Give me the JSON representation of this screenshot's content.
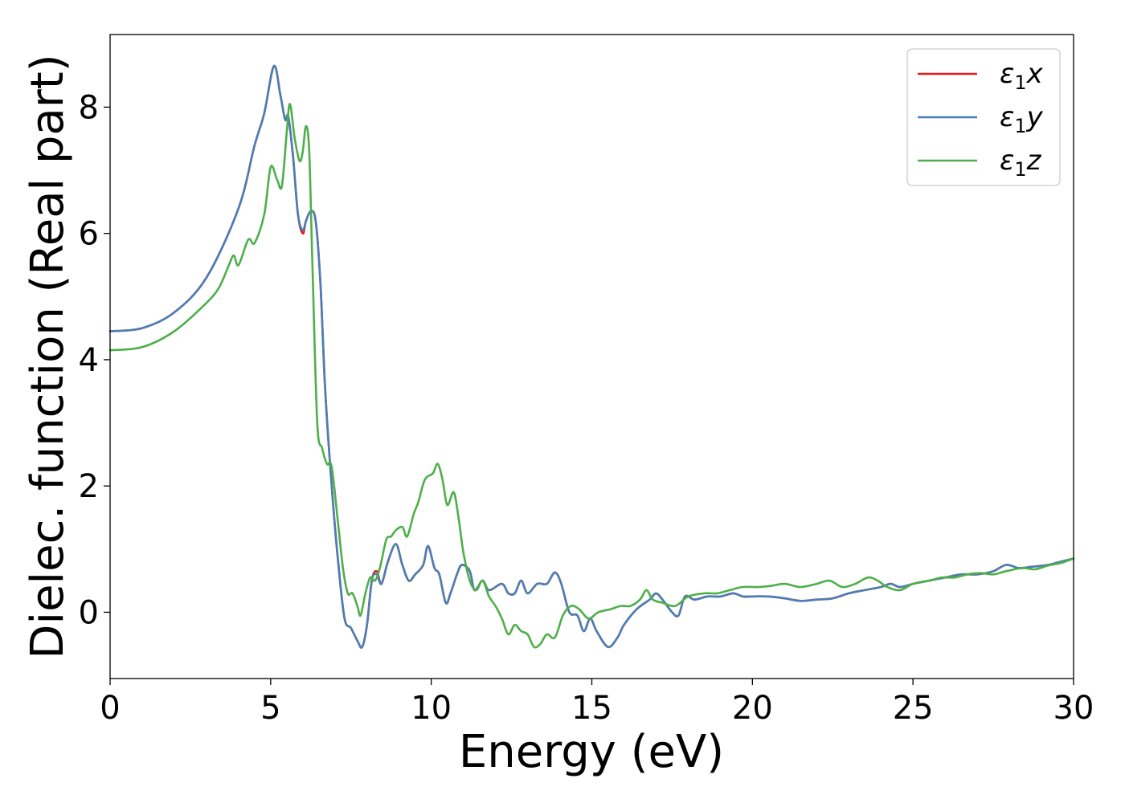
{
  "chart_data": {
    "type": "line",
    "xlabel": "Energy (eV)",
    "ylabel": "Dielec. function (Real part)",
    "xlim": [
      0,
      30
    ],
    "ylim": [
      -1.05,
      9.15
    ],
    "x_ticks": [
      0,
      5,
      10,
      15,
      20,
      25,
      30
    ],
    "y_ticks": [
      0,
      2,
      4,
      6,
      8
    ],
    "grid": false,
    "legend_position": "top-right",
    "series": [
      {
        "name": "ε₁x",
        "legend_main": "ε",
        "legend_sub": "1",
        "legend_var": "x",
        "color": "#e41a1c",
        "points": [
          [
            0,
            4.45
          ],
          [
            1,
            4.5
          ],
          [
            2,
            4.75
          ],
          [
            3,
            5.3
          ],
          [
            4,
            6.4
          ],
          [
            4.5,
            7.4
          ],
          [
            4.8,
            7.9
          ],
          [
            5.1,
            8.65
          ],
          [
            5.3,
            8.2
          ],
          [
            5.45,
            7.8
          ],
          [
            5.55,
            7.85
          ],
          [
            5.7,
            7.2
          ],
          [
            5.85,
            6.3
          ],
          [
            6.0,
            6.0
          ],
          [
            6.1,
            6.2
          ],
          [
            6.25,
            6.35
          ],
          [
            6.4,
            6.2
          ],
          [
            6.55,
            5.2
          ],
          [
            6.7,
            3.5
          ],
          [
            6.9,
            2.0
          ],
          [
            7.1,
            0.8
          ],
          [
            7.3,
            -0.1
          ],
          [
            7.5,
            -0.25
          ],
          [
            7.7,
            -0.45
          ],
          [
            7.85,
            -0.55
          ],
          [
            8.0,
            -0.2
          ],
          [
            8.15,
            0.5
          ],
          [
            8.3,
            0.65
          ],
          [
            8.45,
            0.45
          ],
          [
            8.65,
            0.8
          ],
          [
            8.9,
            1.08
          ],
          [
            9.1,
            0.75
          ],
          [
            9.3,
            0.5
          ],
          [
            9.5,
            0.6
          ],
          [
            9.75,
            0.75
          ],
          [
            9.9,
            1.05
          ],
          [
            10.1,
            0.7
          ],
          [
            10.25,
            0.6
          ],
          [
            10.45,
            0.15
          ],
          [
            10.6,
            0.3
          ],
          [
            10.8,
            0.6
          ],
          [
            10.95,
            0.75
          ],
          [
            11.2,
            0.65
          ],
          [
            11.35,
            0.35
          ],
          [
            11.6,
            0.5
          ],
          [
            11.8,
            0.35
          ],
          [
            12.2,
            0.45
          ],
          [
            12.4,
            0.3
          ],
          [
            12.6,
            0.3
          ],
          [
            12.8,
            0.5
          ],
          [
            13.0,
            0.3
          ],
          [
            13.3,
            0.45
          ],
          [
            13.6,
            0.45
          ],
          [
            13.85,
            0.63
          ],
          [
            14.05,
            0.45
          ],
          [
            14.3,
            0.0
          ],
          [
            14.55,
            -0.05
          ],
          [
            14.75,
            -0.3
          ],
          [
            14.95,
            -0.1
          ],
          [
            15.15,
            -0.3
          ],
          [
            15.5,
            -0.55
          ],
          [
            15.8,
            -0.4
          ],
          [
            16.0,
            -0.2
          ],
          [
            16.4,
            0.05
          ],
          [
            16.8,
            0.2
          ],
          [
            17.0,
            0.3
          ],
          [
            17.2,
            0.2
          ],
          [
            17.5,
            0.0
          ],
          [
            17.7,
            -0.05
          ],
          [
            17.9,
            0.25
          ],
          [
            18.2,
            0.2
          ],
          [
            18.6,
            0.25
          ],
          [
            19.0,
            0.25
          ],
          [
            19.4,
            0.3
          ],
          [
            19.7,
            0.25
          ],
          [
            20.0,
            0.25
          ],
          [
            20.5,
            0.25
          ],
          [
            21.0,
            0.22
          ],
          [
            21.5,
            0.18
          ],
          [
            22.0,
            0.2
          ],
          [
            22.5,
            0.22
          ],
          [
            23.0,
            0.3
          ],
          [
            23.5,
            0.35
          ],
          [
            24.0,
            0.4
          ],
          [
            24.3,
            0.45
          ],
          [
            24.6,
            0.4
          ],
          [
            25.0,
            0.45
          ],
          [
            25.5,
            0.5
          ],
          [
            26.0,
            0.55
          ],
          [
            26.5,
            0.6
          ],
          [
            27.0,
            0.6
          ],
          [
            27.5,
            0.65
          ],
          [
            27.9,
            0.75
          ],
          [
            28.3,
            0.7
          ],
          [
            28.7,
            0.72
          ],
          [
            29.2,
            0.75
          ],
          [
            29.6,
            0.8
          ],
          [
            30.0,
            0.85
          ]
        ]
      },
      {
        "name": "ε₁y",
        "legend_main": "ε",
        "legend_sub": "1",
        "legend_var": "y",
        "color": "#4a7fb5",
        "points": [
          [
            0,
            4.45
          ],
          [
            1,
            4.5
          ],
          [
            2,
            4.75
          ],
          [
            3,
            5.3
          ],
          [
            4,
            6.4
          ],
          [
            4.5,
            7.4
          ],
          [
            4.8,
            7.9
          ],
          [
            5.1,
            8.65
          ],
          [
            5.3,
            8.2
          ],
          [
            5.45,
            7.8
          ],
          [
            5.55,
            7.85
          ],
          [
            5.7,
            7.2
          ],
          [
            5.85,
            6.3
          ],
          [
            6.0,
            6.05
          ],
          [
            6.1,
            6.2
          ],
          [
            6.25,
            6.35
          ],
          [
            6.4,
            6.2
          ],
          [
            6.55,
            5.2
          ],
          [
            6.7,
            3.5
          ],
          [
            6.9,
            2.0
          ],
          [
            7.1,
            0.8
          ],
          [
            7.3,
            -0.1
          ],
          [
            7.5,
            -0.25
          ],
          [
            7.7,
            -0.45
          ],
          [
            7.85,
            -0.55
          ],
          [
            8.0,
            -0.2
          ],
          [
            8.15,
            0.5
          ],
          [
            8.3,
            0.6
          ],
          [
            8.45,
            0.45
          ],
          [
            8.65,
            0.8
          ],
          [
            8.9,
            1.08
          ],
          [
            9.1,
            0.75
          ],
          [
            9.3,
            0.5
          ],
          [
            9.5,
            0.6
          ],
          [
            9.75,
            0.75
          ],
          [
            9.9,
            1.05
          ],
          [
            10.1,
            0.7
          ],
          [
            10.25,
            0.6
          ],
          [
            10.45,
            0.15
          ],
          [
            10.6,
            0.3
          ],
          [
            10.8,
            0.6
          ],
          [
            10.95,
            0.75
          ],
          [
            11.2,
            0.65
          ],
          [
            11.35,
            0.35
          ],
          [
            11.6,
            0.5
          ],
          [
            11.8,
            0.35
          ],
          [
            12.2,
            0.45
          ],
          [
            12.4,
            0.3
          ],
          [
            12.6,
            0.3
          ],
          [
            12.8,
            0.5
          ],
          [
            13.0,
            0.3
          ],
          [
            13.3,
            0.45
          ],
          [
            13.6,
            0.45
          ],
          [
            13.85,
            0.63
          ],
          [
            14.05,
            0.45
          ],
          [
            14.3,
            0.0
          ],
          [
            14.55,
            -0.05
          ],
          [
            14.75,
            -0.3
          ],
          [
            14.95,
            -0.1
          ],
          [
            15.15,
            -0.3
          ],
          [
            15.5,
            -0.55
          ],
          [
            15.8,
            -0.4
          ],
          [
            16.0,
            -0.2
          ],
          [
            16.4,
            0.05
          ],
          [
            16.8,
            0.2
          ],
          [
            17.0,
            0.3
          ],
          [
            17.2,
            0.2
          ],
          [
            17.5,
            0.0
          ],
          [
            17.7,
            -0.05
          ],
          [
            17.9,
            0.25
          ],
          [
            18.2,
            0.2
          ],
          [
            18.6,
            0.25
          ],
          [
            19.0,
            0.25
          ],
          [
            19.4,
            0.3
          ],
          [
            19.7,
            0.25
          ],
          [
            20.0,
            0.25
          ],
          [
            20.5,
            0.25
          ],
          [
            21.0,
            0.22
          ],
          [
            21.5,
            0.18
          ],
          [
            22.0,
            0.2
          ],
          [
            22.5,
            0.22
          ],
          [
            23.0,
            0.3
          ],
          [
            23.5,
            0.35
          ],
          [
            24.0,
            0.4
          ],
          [
            24.3,
            0.45
          ],
          [
            24.6,
            0.4
          ],
          [
            25.0,
            0.45
          ],
          [
            25.5,
            0.5
          ],
          [
            26.0,
            0.55
          ],
          [
            26.5,
            0.6
          ],
          [
            27.0,
            0.6
          ],
          [
            27.5,
            0.65
          ],
          [
            27.9,
            0.75
          ],
          [
            28.3,
            0.7
          ],
          [
            28.7,
            0.72
          ],
          [
            29.2,
            0.75
          ],
          [
            29.6,
            0.8
          ],
          [
            30.0,
            0.85
          ]
        ]
      },
      {
        "name": "ε₁z",
        "legend_main": "ε",
        "legend_sub": "1",
        "legend_var": "z",
        "color": "#4daf4a",
        "points": [
          [
            0,
            4.15
          ],
          [
            1,
            4.2
          ],
          [
            2,
            4.45
          ],
          [
            3,
            4.9
          ],
          [
            3.4,
            5.15
          ],
          [
            3.7,
            5.5
          ],
          [
            3.85,
            5.65
          ],
          [
            4.0,
            5.5
          ],
          [
            4.3,
            5.9
          ],
          [
            4.5,
            5.85
          ],
          [
            4.8,
            6.3
          ],
          [
            5.0,
            7.05
          ],
          [
            5.2,
            6.85
          ],
          [
            5.35,
            6.75
          ],
          [
            5.5,
            7.6
          ],
          [
            5.6,
            8.05
          ],
          [
            5.75,
            7.5
          ],
          [
            5.9,
            7.15
          ],
          [
            6.0,
            7.3
          ],
          [
            6.1,
            7.7
          ],
          [
            6.2,
            7.3
          ],
          [
            6.3,
            5.5
          ],
          [
            6.45,
            3.0
          ],
          [
            6.6,
            2.6
          ],
          [
            6.75,
            2.35
          ],
          [
            6.9,
            2.3
          ],
          [
            7.1,
            1.4
          ],
          [
            7.25,
            0.7
          ],
          [
            7.4,
            0.3
          ],
          [
            7.55,
            0.3
          ],
          [
            7.7,
            0.1
          ],
          [
            7.8,
            -0.05
          ],
          [
            7.95,
            0.3
          ],
          [
            8.1,
            0.55
          ],
          [
            8.25,
            0.5
          ],
          [
            8.4,
            0.7
          ],
          [
            8.6,
            1.15
          ],
          [
            8.75,
            1.2
          ],
          [
            8.9,
            1.3
          ],
          [
            9.1,
            1.35
          ],
          [
            9.25,
            1.2
          ],
          [
            9.45,
            1.55
          ],
          [
            9.6,
            1.75
          ],
          [
            9.8,
            2.1
          ],
          [
            10.05,
            2.2
          ],
          [
            10.2,
            2.35
          ],
          [
            10.35,
            2.1
          ],
          [
            10.5,
            1.7
          ],
          [
            10.7,
            1.9
          ],
          [
            10.85,
            1.5
          ],
          [
            11.0,
            0.95
          ],
          [
            11.2,
            0.5
          ],
          [
            11.4,
            0.35
          ],
          [
            11.6,
            0.5
          ],
          [
            11.8,
            0.25
          ],
          [
            12.0,
            0.1
          ],
          [
            12.2,
            -0.1
          ],
          [
            12.4,
            -0.35
          ],
          [
            12.6,
            -0.2
          ],
          [
            12.8,
            -0.3
          ],
          [
            13.0,
            -0.35
          ],
          [
            13.2,
            -0.55
          ],
          [
            13.4,
            -0.5
          ],
          [
            13.6,
            -0.35
          ],
          [
            13.85,
            -0.4
          ],
          [
            14.1,
            -0.05
          ],
          [
            14.35,
            0.1
          ],
          [
            14.6,
            0.05
          ],
          [
            14.9,
            -0.1
          ],
          [
            15.2,
            0.0
          ],
          [
            15.6,
            0.05
          ],
          [
            15.9,
            0.1
          ],
          [
            16.2,
            0.1
          ],
          [
            16.5,
            0.2
          ],
          [
            16.7,
            0.35
          ],
          [
            16.9,
            0.2
          ],
          [
            17.2,
            0.15
          ],
          [
            17.6,
            0.1
          ],
          [
            18.0,
            0.25
          ],
          [
            18.5,
            0.3
          ],
          [
            18.9,
            0.3
          ],
          [
            19.3,
            0.35
          ],
          [
            19.7,
            0.4
          ],
          [
            20.2,
            0.4
          ],
          [
            20.6,
            0.42
          ],
          [
            21.0,
            0.45
          ],
          [
            21.5,
            0.4
          ],
          [
            22.0,
            0.45
          ],
          [
            22.4,
            0.5
          ],
          [
            22.8,
            0.4
          ],
          [
            23.2,
            0.45
          ],
          [
            23.6,
            0.55
          ],
          [
            23.9,
            0.5
          ],
          [
            24.2,
            0.4
          ],
          [
            24.6,
            0.35
          ],
          [
            25.0,
            0.45
          ],
          [
            25.5,
            0.5
          ],
          [
            25.9,
            0.55
          ],
          [
            26.3,
            0.55
          ],
          [
            26.7,
            0.6
          ],
          [
            27.1,
            0.62
          ],
          [
            27.5,
            0.6
          ],
          [
            27.9,
            0.65
          ],
          [
            28.4,
            0.7
          ],
          [
            28.8,
            0.68
          ],
          [
            29.2,
            0.74
          ],
          [
            29.6,
            0.78
          ],
          [
            30.0,
            0.85
          ]
        ]
      }
    ]
  }
}
